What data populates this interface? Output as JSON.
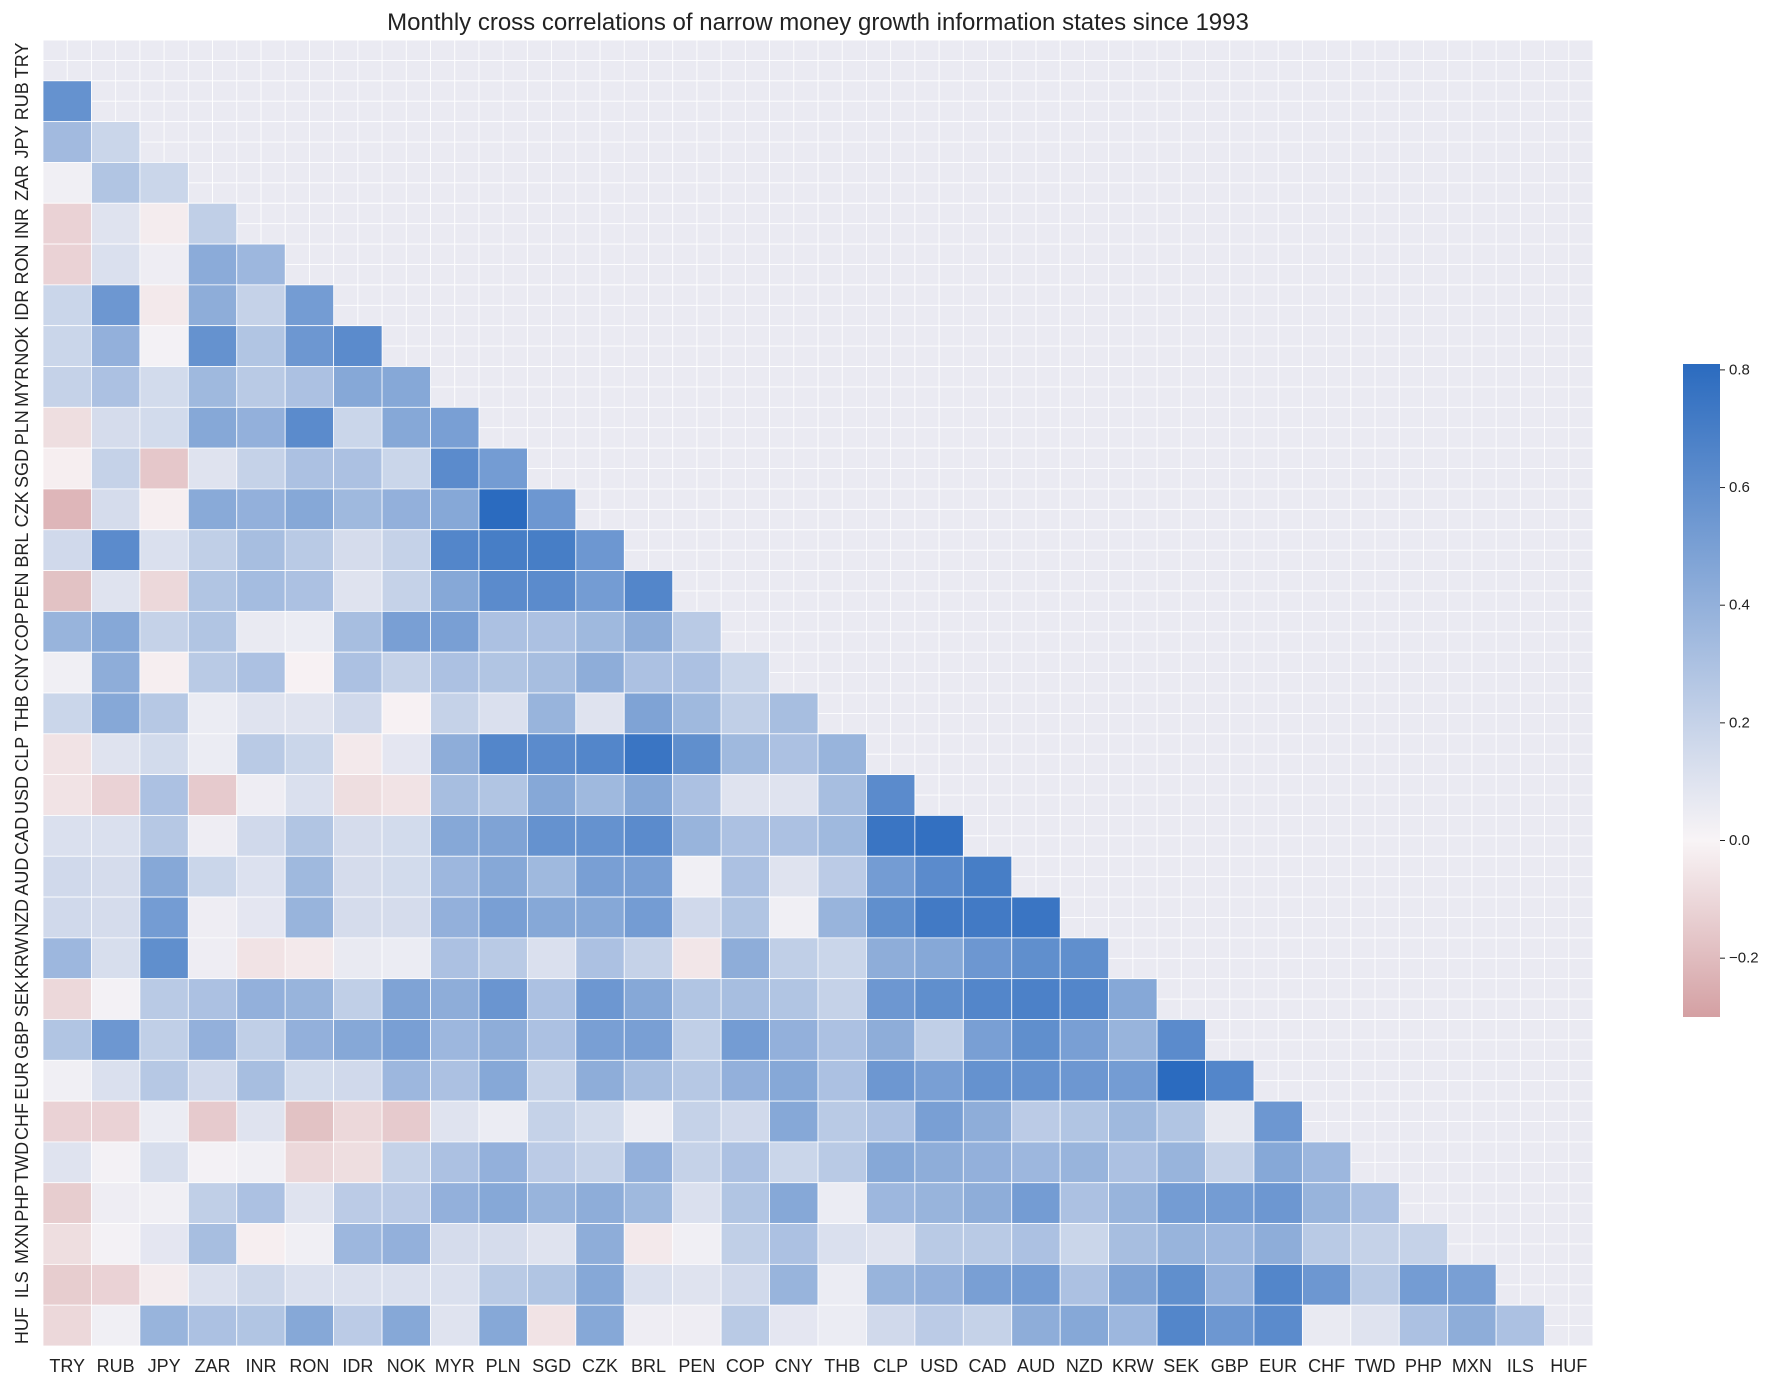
{
  "chart_data": {
    "type": "heatmap",
    "title": "Monthly cross correlations of narrow money growth information states since 1993",
    "xlabel": "",
    "ylabel": "",
    "labels": [
      "TRY",
      "RUB",
      "JPY",
      "ZAR",
      "INR",
      "RON",
      "IDR",
      "NOK",
      "MYR",
      "PLN",
      "SGD",
      "CZK",
      "BRL",
      "PEN",
      "COP",
      "CNY",
      "THB",
      "CLP",
      "USD",
      "CAD",
      "AUD",
      "NZD",
      "KRW",
      "SEK",
      "GBP",
      "EUR",
      "CHF",
      "TWD",
      "PHP",
      "MXN",
      "ILS",
      "HUF"
    ],
    "mask": "upper triangle including diagonal",
    "grid": true,
    "colorbar": {
      "position": "right",
      "min": -0.3,
      "max": 0.81,
      "ticks": [
        -0.2,
        0.0,
        0.2,
        0.4,
        0.6,
        0.8
      ],
      "tick_labels": [
        "−0.2",
        "0.0",
        "0.2",
        "0.4",
        "0.6",
        "0.8"
      ],
      "colors": {
        "negative": "#d4a0a3",
        "zero": "#f8f4f6",
        "positive": "#2b6bbf"
      }
    },
    "colors": {
      "background": "#eaeaf2",
      "gridline": "#ffffff"
    },
    "rows": [
      [],
      [
        0.58
      ],
      [
        0.34,
        0.18
      ],
      [
        0.03,
        0.28,
        0.18
      ],
      [
        -0.12,
        0.1,
        -0.03,
        0.22
      ],
      [
        -0.12,
        0.12,
        0.04,
        0.43,
        0.36
      ],
      [
        0.18,
        0.55,
        -0.04,
        0.42,
        0.2,
        0.52
      ],
      [
        0.18,
        0.4,
        0.02,
        0.58,
        0.28,
        0.55,
        0.62
      ],
      [
        0.2,
        0.3,
        0.15,
        0.35,
        0.25,
        0.3,
        0.45,
        0.45
      ],
      [
        -0.08,
        0.14,
        0.15,
        0.45,
        0.4,
        0.62,
        0.18,
        0.45,
        0.5
      ],
      [
        -0.02,
        0.2,
        -0.16,
        0.1,
        0.2,
        0.3,
        0.3,
        0.18,
        0.62,
        0.52
      ],
      [
        -0.22,
        0.14,
        -0.02,
        0.44,
        0.4,
        0.45,
        0.35,
        0.4,
        0.45,
        0.81,
        0.55
      ],
      [
        0.16,
        0.62,
        0.12,
        0.22,
        0.32,
        0.25,
        0.14,
        0.2,
        0.65,
        0.7,
        0.7,
        0.55
      ],
      [
        -0.18,
        0.1,
        -0.1,
        0.28,
        0.33,
        0.3,
        0.1,
        0.2,
        0.45,
        0.62,
        0.62,
        0.52,
        0.65
      ],
      [
        0.38,
        0.45,
        0.2,
        0.28,
        0.06,
        0.05,
        0.32,
        0.5,
        0.5,
        0.3,
        0.3,
        0.35,
        0.42,
        0.25
      ],
      [
        0.03,
        0.42,
        -0.02,
        0.25,
        0.3,
        -0.01,
        0.3,
        0.2,
        0.3,
        0.28,
        0.32,
        0.42,
        0.3,
        0.3,
        0.18
      ],
      [
        0.18,
        0.45,
        0.26,
        0.05,
        0.1,
        0.1,
        0.16,
        -0.01,
        0.2,
        0.12,
        0.38,
        0.1,
        0.48,
        0.35,
        0.22,
        0.32
      ],
      [
        -0.06,
        0.1,
        0.15,
        0.05,
        0.25,
        0.18,
        -0.04,
        0.08,
        0.42,
        0.65,
        0.62,
        0.65,
        0.75,
        0.6,
        0.35,
        0.3,
        0.38
      ],
      [
        -0.06,
        -0.12,
        0.3,
        -0.15,
        0.04,
        0.12,
        -0.08,
        -0.06,
        0.32,
        0.28,
        0.45,
        0.35,
        0.45,
        0.3,
        0.1,
        0.1,
        0.32,
        0.62
      ],
      [
        0.12,
        0.12,
        0.26,
        0.04,
        0.16,
        0.28,
        0.14,
        0.15,
        0.45,
        0.48,
        0.58,
        0.58,
        0.62,
        0.38,
        0.3,
        0.3,
        0.35,
        0.75,
        0.78
      ],
      [
        0.16,
        0.14,
        0.45,
        0.18,
        0.11,
        0.35,
        0.14,
        0.15,
        0.36,
        0.45,
        0.35,
        0.5,
        0.5,
        0.03,
        0.3,
        0.1,
        0.24,
        0.52,
        0.62,
        0.7
      ],
      [
        0.16,
        0.14,
        0.52,
        0.04,
        0.08,
        0.38,
        0.14,
        0.14,
        0.4,
        0.5,
        0.45,
        0.45,
        0.52,
        0.16,
        0.28,
        0.03,
        0.38,
        0.6,
        0.72,
        0.72,
        0.75
      ],
      [
        0.36,
        0.13,
        0.6,
        0.04,
        -0.06,
        -0.04,
        0.06,
        0.05,
        0.3,
        0.25,
        0.12,
        0.3,
        0.2,
        -0.05,
        0.42,
        0.22,
        0.18,
        0.42,
        0.45,
        0.55,
        0.6,
        0.6
      ],
      [
        -0.1,
        0.02,
        0.25,
        0.3,
        0.4,
        0.38,
        0.22,
        0.48,
        0.42,
        0.56,
        0.3,
        0.55,
        0.45,
        0.28,
        0.32,
        0.28,
        0.2,
        0.55,
        0.6,
        0.65,
        0.68,
        0.65,
        0.45
      ],
      [
        0.28,
        0.55,
        0.22,
        0.4,
        0.22,
        0.4,
        0.45,
        0.5,
        0.36,
        0.42,
        0.3,
        0.5,
        0.5,
        0.22,
        0.52,
        0.4,
        0.3,
        0.42,
        0.22,
        0.5,
        0.6,
        0.5,
        0.38,
        0.62
      ],
      [
        0.03,
        0.12,
        0.26,
        0.16,
        0.32,
        0.15,
        0.16,
        0.36,
        0.3,
        0.45,
        0.2,
        0.42,
        0.32,
        0.26,
        0.4,
        0.45,
        0.3,
        0.55,
        0.5,
        0.58,
        0.58,
        0.55,
        0.52,
        0.81,
        0.65
      ],
      [
        -0.12,
        -0.12,
        0.05,
        -0.15,
        0.1,
        -0.18,
        -0.1,
        -0.15,
        0.1,
        0.05,
        0.2,
        0.15,
        0.05,
        0.2,
        0.16,
        0.45,
        0.25,
        0.3,
        0.5,
        0.42,
        0.24,
        0.28,
        0.35,
        0.28,
        0.07,
        0.55
      ],
      [
        0.1,
        0.02,
        0.13,
        0.02,
        0.03,
        -0.1,
        -0.08,
        0.2,
        0.3,
        0.4,
        0.24,
        0.2,
        0.4,
        0.2,
        0.3,
        0.18,
        0.25,
        0.45,
        0.42,
        0.4,
        0.36,
        0.38,
        0.3,
        0.38,
        0.2,
        0.45,
        0.36
      ],
      [
        -0.14,
        0.04,
        0.03,
        0.22,
        0.3,
        0.1,
        0.24,
        0.24,
        0.4,
        0.45,
        0.38,
        0.42,
        0.35,
        0.12,
        0.28,
        0.45,
        0.05,
        0.36,
        0.38,
        0.42,
        0.52,
        0.3,
        0.38,
        0.52,
        0.52,
        0.55,
        0.38,
        0.3
      ],
      [
        -0.08,
        0.02,
        0.08,
        0.32,
        -0.02,
        0.03,
        0.36,
        0.4,
        0.14,
        0.14,
        0.1,
        0.42,
        -0.04,
        0.03,
        0.22,
        0.3,
        0.12,
        0.1,
        0.25,
        0.25,
        0.3,
        0.18,
        0.32,
        0.38,
        0.36,
        0.42,
        0.25,
        0.2,
        0.2
      ],
      [
        -0.14,
        -0.12,
        -0.03,
        0.12,
        0.17,
        0.12,
        0.12,
        0.12,
        0.12,
        0.25,
        0.28,
        0.45,
        0.12,
        0.1,
        0.16,
        0.38,
        0.05,
        0.38,
        0.4,
        0.5,
        0.52,
        0.3,
        0.48,
        0.6,
        0.4,
        0.65,
        0.55,
        0.25,
        0.52,
        0.5
      ],
      [
        -0.1,
        0.03,
        0.38,
        0.3,
        0.28,
        0.45,
        0.24,
        0.45,
        0.1,
        0.45,
        -0.06,
        0.45,
        0.04,
        0.04,
        0.25,
        0.08,
        0.05,
        0.16,
        0.24,
        0.2,
        0.42,
        0.45,
        0.36,
        0.65,
        0.55,
        0.62,
        0.06,
        0.1,
        0.3,
        0.42,
        0.3
      ]
    ]
  }
}
